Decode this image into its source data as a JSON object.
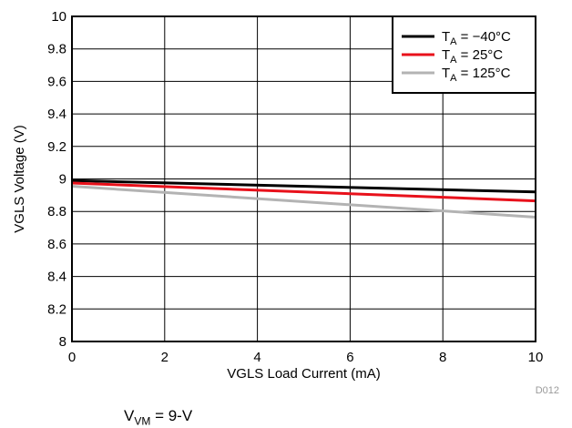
{
  "chart_data": {
    "type": "line",
    "title": "",
    "xlabel": "VGLS Load Current (mA)",
    "ylabel": "VGLS Voltage (V)",
    "xlim": [
      0,
      10
    ],
    "ylim": [
      8,
      10
    ],
    "xticks": [
      "0",
      "2",
      "4",
      "6",
      "8",
      "10"
    ],
    "yticks": [
      "8",
      "8.2",
      "8.4",
      "8.6",
      "8.8",
      "9",
      "9.2",
      "9.4",
      "9.6",
      "9.8",
      "10"
    ],
    "grid": true,
    "legend": "top-right",
    "series": [
      {
        "name_main": "T",
        "name_sub": "A",
        "name_rest": " = −40°C",
        "color": "#000000",
        "x": [
          0,
          10
        ],
        "y": [
          8.99,
          8.92
        ]
      },
      {
        "name_main": "T",
        "name_sub": "A",
        "name_rest": " = 25°C",
        "color": "#e8111b",
        "x": [
          0,
          10
        ],
        "y": [
          8.975,
          8.865
        ]
      },
      {
        "name_main": "T",
        "name_sub": "A",
        "name_rest": " = 125°C",
        "color": "#b3b3b3",
        "x": [
          0,
          10
        ],
        "y": [
          8.955,
          8.765
        ]
      }
    ]
  },
  "figure_id": "D012",
  "footnote": {
    "main": "V",
    "sub": "VM",
    "rest": " = 9-V"
  }
}
